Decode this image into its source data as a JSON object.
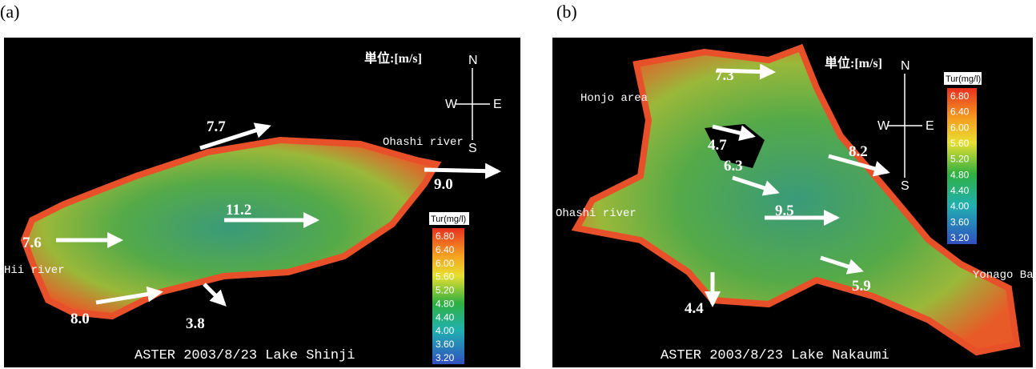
{
  "panels": [
    {
      "label": "(a)",
      "unit": "単位:[m/s]",
      "compass": [
        "N",
        "W",
        "E",
        "S"
      ],
      "places": [
        "Ohashi river",
        "Hii river"
      ],
      "speeds": [
        "7.7",
        "9.0",
        "11.2",
        "7.6",
        "8.0",
        "3.8"
      ],
      "legend": {
        "title": "Tur(mg/l)",
        "ticks": [
          "6.80",
          "6.40",
          "6.00",
          "5.60",
          "5.20",
          "4.80",
          "4.40",
          "4.00",
          "3.60",
          "3.20"
        ]
      },
      "caption": "ASTER 2003/8/23 Lake Shinji"
    },
    {
      "label": "(b)",
      "unit": "単位:[m/s]",
      "compass": [
        "N",
        "W",
        "E",
        "S"
      ],
      "places": [
        "Honjo area",
        "Ohashi river",
        "Yonago Bay"
      ],
      "speeds": [
        "7.3",
        "4.7",
        "6.3",
        "8.2",
        "9.5",
        "5.9",
        "4.4"
      ],
      "legend": {
        "title": "Tur(mg/l)",
        "ticks": [
          "6.80",
          "6.40",
          "6.00",
          "5.60",
          "5.20",
          "4.80",
          "4.40",
          "4.00",
          "3.60",
          "3.20"
        ]
      },
      "caption": "ASTER 2003/8/23 Lake Nakaumi"
    }
  ]
}
